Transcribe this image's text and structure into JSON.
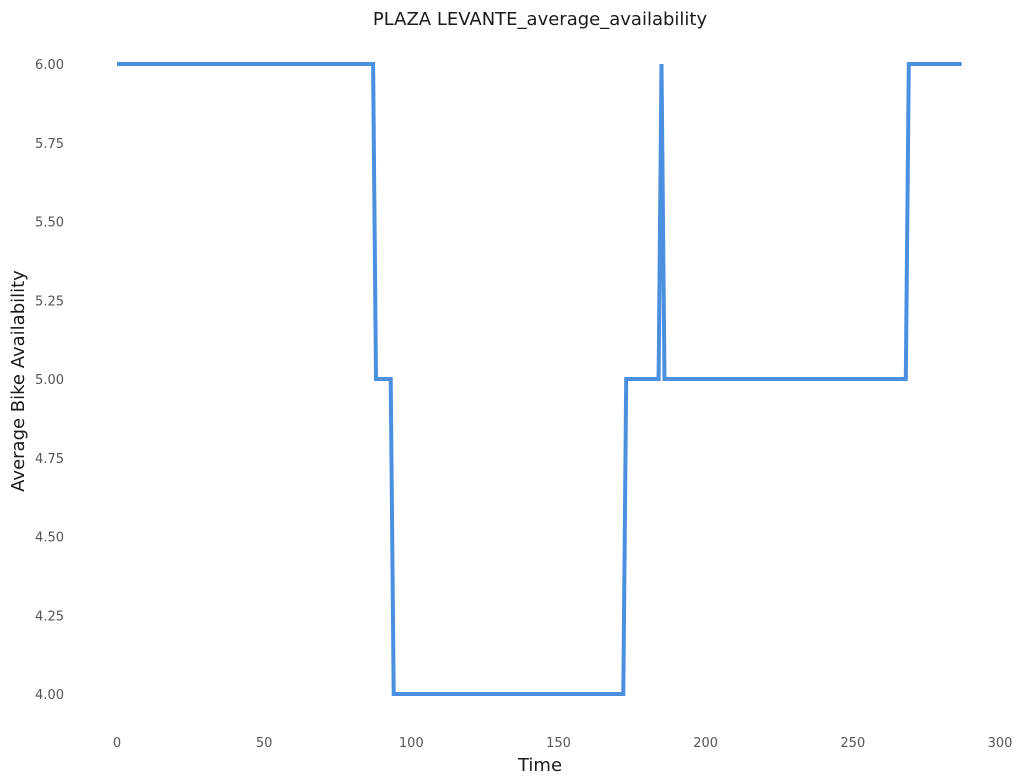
{
  "chart_data": {
    "type": "line",
    "title": "PLAZA LEVANTE_average_availability",
    "xlabel": "Time",
    "ylabel": "Average Bike Availability",
    "xlim": [
      -2,
      300
    ],
    "ylim": [
      3.9,
      6.07
    ],
    "x_ticks": [
      0,
      50,
      100,
      150,
      200,
      250,
      300
    ],
    "x_tick_labels": [
      "0",
      "50",
      "100",
      "150",
      "200",
      "250",
      "300"
    ],
    "y_ticks": [
      4.0,
      4.25,
      4.5,
      4.75,
      5.0,
      5.25,
      5.5,
      5.75,
      6.0
    ],
    "y_tick_labels": [
      "4.00",
      "4.25",
      "4.50",
      "4.75",
      "5.00",
      "5.25",
      "5.50",
      "5.75",
      "6.00"
    ],
    "grid": false,
    "line_color": "#4a8fe0",
    "series": [
      {
        "x": [
          0,
          87,
          88,
          93,
          94,
          172,
          173,
          184,
          185,
          186,
          268,
          269,
          287
        ],
        "y": [
          6,
          6,
          5,
          5,
          4,
          4,
          5,
          5,
          6,
          5,
          5,
          6,
          6
        ]
      }
    ]
  }
}
